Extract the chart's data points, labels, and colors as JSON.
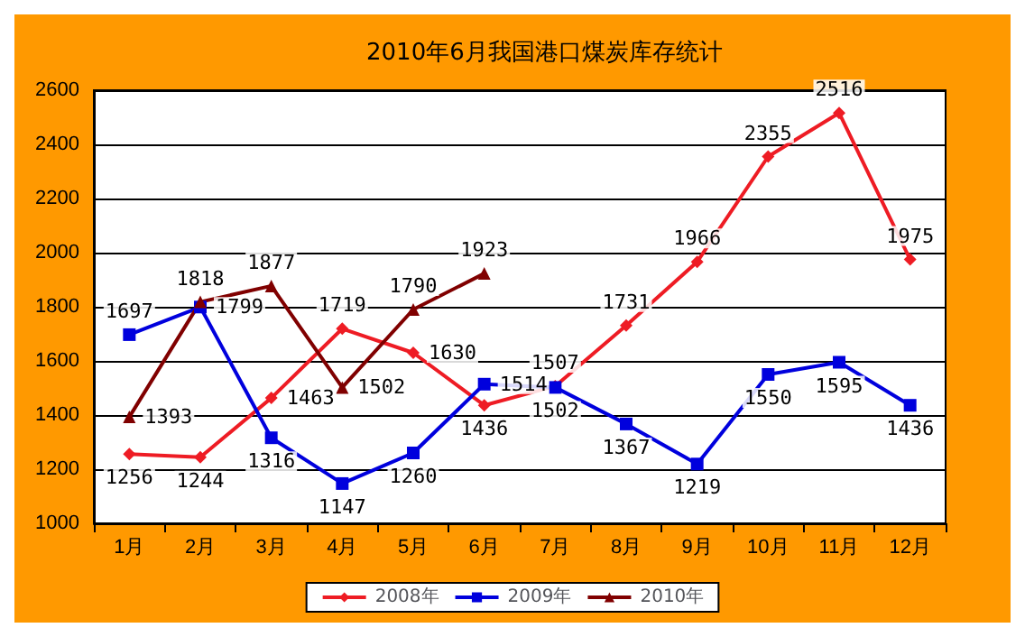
{
  "chart_data": {
    "type": "line",
    "title": "2010年6月我国港口煤炭库存统计",
    "categories": [
      "1月",
      "2月",
      "3月",
      "4月",
      "5月",
      "6月",
      "7月",
      "8月",
      "9月",
      "10月",
      "11月",
      "12月"
    ],
    "series": [
      {
        "name": "2008年",
        "color": "#ee1c24",
        "marker": "diamond",
        "values": [
          1256,
          1244,
          1463,
          1719,
          1630,
          1436,
          1507,
          1731,
          1966,
          2355,
          2516,
          1975
        ]
      },
      {
        "name": "2009年",
        "color": "#0000dd",
        "marker": "square",
        "values": [
          1697,
          1799,
          1316,
          1147,
          1260,
          1514,
          1502,
          1367,
          1219,
          1550,
          1595,
          1436
        ]
      },
      {
        "name": "2010年",
        "color": "#800000",
        "marker": "triangle",
        "values": [
          1393,
          1818,
          1877,
          1502,
          1790,
          1923,
          null,
          null,
          null,
          null,
          null,
          null
        ]
      }
    ],
    "ylim": [
      1000,
      2600
    ],
    "yticks": [
      1000,
      1200,
      1400,
      1600,
      1800,
      2000,
      2200,
      2400,
      2600
    ],
    "grid": "y",
    "legend": "bottom",
    "data_labels": true,
    "line_style": "solid"
  }
}
